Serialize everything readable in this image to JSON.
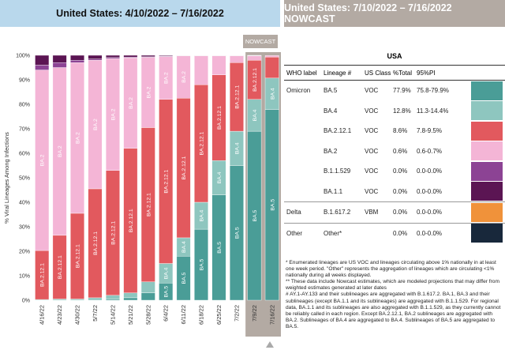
{
  "header": {
    "left_title": "United States: 4/10/2022 – 7/16/2022",
    "right_title": "United States: 7/10/2022 – 7/16/2022 NOWCAST"
  },
  "nowcast_label": "NOWCAST",
  "chart_data": {
    "type": "bar",
    "stacked": true,
    "ylabel": "% Viral Lineages Among Infections",
    "ylim": [
      0,
      100
    ],
    "yticks": [
      "0%",
      "10%",
      "20%",
      "30%",
      "40%",
      "50%",
      "60%",
      "70%",
      "80%",
      "90%",
      "100%"
    ],
    "categories": [
      "4/16/22",
      "4/23/22",
      "4/30/22",
      "5/7/22",
      "5/14/22",
      "5/21/22",
      "5/28/22",
      "6/4/22",
      "6/11/22",
      "6/18/22",
      "6/25/22",
      "7/2/22",
      "7/9/22",
      "7/16/22"
    ],
    "nowcast_categories": [
      "7/9/22",
      "7/16/22"
    ],
    "series": [
      {
        "name": "BA.5",
        "color": "#4a9d97",
        "values": [
          0,
          0,
          0,
          0,
          0.5,
          1,
          3,
          7,
          18,
          29,
          43,
          55,
          69,
          77.9
        ]
      },
      {
        "name": "BA.4",
        "color": "#8ec6bf",
        "values": [
          0.3,
          0.5,
          0.5,
          1,
          1.5,
          2,
          4.5,
          8,
          7.5,
          11,
          14,
          14,
          13,
          12.8
        ]
      },
      {
        "name": "BA.2.12.1",
        "color": "#e2595e",
        "values": [
          20,
          26,
          35,
          44.5,
          51,
          59,
          63,
          67,
          57,
          48,
          35,
          28,
          16,
          8.6
        ]
      },
      {
        "name": "BA.2",
        "color": "#f4b5d6",
        "values": [
          73.7,
          68.5,
          61.5,
          52.5,
          45.7,
          37,
          28.7,
          17.5,
          17.3,
          11.8,
          7.8,
          2.8,
          1.8,
          0.6
        ]
      },
      {
        "name": "B.1.1.529",
        "color": "#8c4394",
        "values": [
          2,
          2,
          1,
          0.5,
          0.4,
          0.3,
          0.2,
          0.2,
          0.1,
          0.1,
          0.1,
          0.1,
          0.1,
          0
        ]
      },
      {
        "name": "BA.1.1",
        "color": "#5b1553",
        "values": [
          4,
          3,
          2,
          1.5,
          0.9,
          0.7,
          0.6,
          0.3,
          0.1,
          0.1,
          0.1,
          0.1,
          0.1,
          0
        ]
      }
    ],
    "bar_labels": [
      {
        "series": "BA.5",
        "from_index": 7,
        "text": "BA.5"
      },
      {
        "series": "BA.4",
        "from_index": 7,
        "text": "BA.4"
      },
      {
        "series": "BA.2.12.1",
        "from_index": 0,
        "to_index": 12,
        "text": "BA.2.12.1"
      },
      {
        "series": "BA.2",
        "from_index": 0,
        "to_index": 8,
        "text": "BA.2"
      }
    ]
  },
  "table": {
    "title": "USA",
    "headers": [
      "WHO label",
      "Lineage #",
      "US Class",
      "%Total",
      "95%PI"
    ],
    "rows": [
      {
        "who": "Omicron",
        "lineage": "BA.5",
        "cls": "VOC",
        "pct": "77.9%",
        "pi": "75.8-79.9%",
        "color": "#4a9d97"
      },
      {
        "who": "",
        "lineage": "BA.4",
        "cls": "VOC",
        "pct": "12.8%",
        "pi": "11.3-14.4%",
        "color": "#8ec6bf"
      },
      {
        "who": "",
        "lineage": "BA.2.12.1",
        "cls": "VOC",
        "pct": "8.6%",
        "pi": "7.8-9.5%",
        "color": "#e2595e"
      },
      {
        "who": "",
        "lineage": "BA.2",
        "cls": "VOC",
        "pct": "0.6%",
        "pi": "0.6-0.7%",
        "color": "#f4b5d6"
      },
      {
        "who": "",
        "lineage": "B.1.1.529",
        "cls": "VOC",
        "pct": "0.0%",
        "pi": "0.0-0.0%",
        "color": "#8c4394"
      },
      {
        "who": "",
        "lineage": "BA.1.1",
        "cls": "VOC",
        "pct": "0.0%",
        "pi": "0.0-0.0%",
        "color": "#5b1553"
      },
      {
        "who": "Delta",
        "lineage": "B.1.617.2",
        "cls": "VBM",
        "pct": "0.0%",
        "pi": "0.0-0.0%",
        "color": "#f0923a"
      },
      {
        "who": "Other",
        "lineage": "Other*",
        "cls": "",
        "pct": "0.0%",
        "pi": "0.0-0.0%",
        "color": "#18283b"
      }
    ]
  },
  "notes": [
    "*     Enumerated lineages are US VOC and lineages circulating above 1% nationally in at least one week period. \"Other\" represents the aggregation of lineages which are circulating <1% nationally during all weeks displayed.",
    "**    These data include Nowcast estimates, which are modeled projections that may differ from weighted estimates generated at later dates",
    "#     AY.1-AY.133 and their sublineages are aggregated with B.1.617.2. BA.1, BA.3 and their sublineages (except BA.1.1 and its sublineages) are aggregated with B.1.1.529. For regional data, BA.1.1 and its sublineages are also aggregated with B.1.1.529, as they currently cannot be reliably called in each region. Except BA.2.12.1, BA.2 sublineages are aggregated with BA.2. Sublineages of BA.4 are aggregated to BA.4. Sublineages of BA.5 are aggregated to BA.5."
  ]
}
